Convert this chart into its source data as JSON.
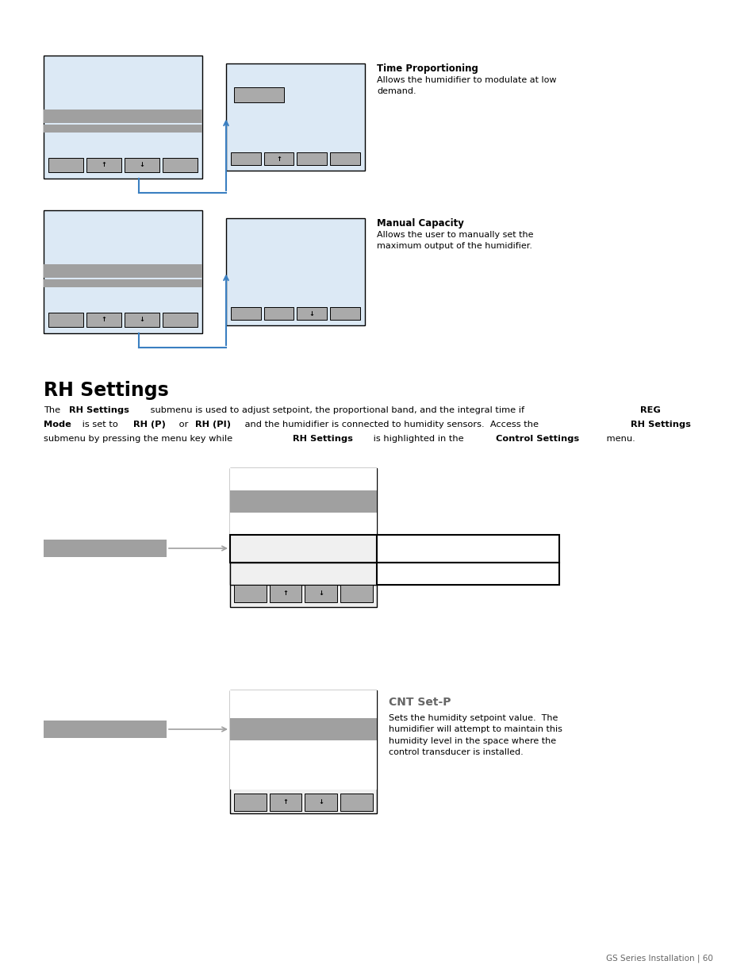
{
  "page_bg": "#ffffff",
  "page_width": 9.54,
  "page_height": 12.35,
  "section1_title": "Time Proportioning",
  "section1_text": "Allows the humidifier to modulate at low\ndemand.",
  "section2_title": "Manual Capacity",
  "section2_text": "Allows the user to manually set the\nmaximum output of the humidifier.",
  "rh_heading": "RH Settings",
  "cnt_title": "CNT Set-P",
  "cnt_text": "Sets the humidity setpoint value.  The\nhumidifier will attempt to maintain this\nhumidity level in the space where the\ncontrol transducer is installed.",
  "footer_text": "GS Series Installation | 60",
  "colors": {
    "light_blue_bg": "#dce9f5",
    "gray_bar": "#a0a0a0",
    "gray_btn": "#aaaaaa",
    "arrow_blue": "#3a7fc1",
    "border": "#000000",
    "light_gray_bg": "#f0f0f0",
    "white_bg": "#ffffff",
    "ext_border": "#111111"
  }
}
